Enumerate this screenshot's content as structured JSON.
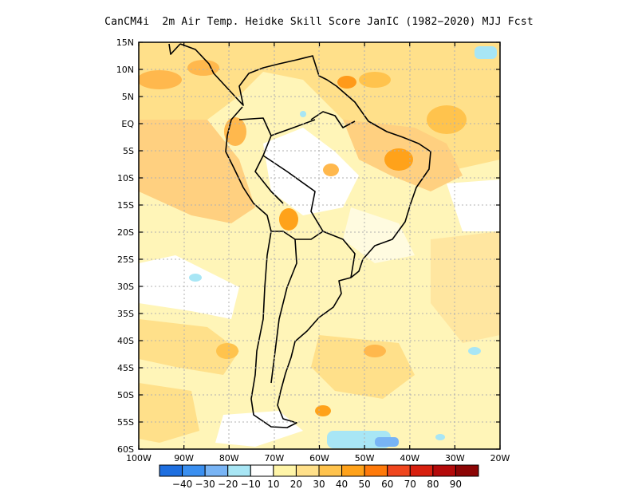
{
  "title": "CanCM4i  2m Air Temp. Heidke Skill Score JanIC (1982−2020) MJJ Fcst",
  "map": {
    "lat_labels": [
      "15N",
      "10N",
      "5N",
      "EQ",
      "5S",
      "10S",
      "15S",
      "20S",
      "25S",
      "30S",
      "35S",
      "40S",
      "45S",
      "50S",
      "55S",
      "60S"
    ],
    "lon_labels": [
      "100W",
      "90W",
      "80W",
      "70W",
      "60W",
      "50W",
      "40W",
      "30W",
      "20W"
    ],
    "lat_range": [
      -60,
      15
    ],
    "lon_range": [
      -100,
      -20
    ],
    "grid": true,
    "background_color": "#ffffff",
    "land_outline_color": "#000000"
  },
  "colorbar": {
    "labels": [
      "−40",
      "−30",
      "−20",
      "−10",
      "10",
      "20",
      "30",
      "40",
      "50",
      "60",
      "70",
      "80",
      "90"
    ],
    "colors": [
      "#1e6fe0",
      "#3a8ff0",
      "#78b4f5",
      "#a8e6f5",
      "#ffffff",
      "#fff5a8",
      "#ffe08a",
      "#ffc34d",
      "#ffa21a",
      "#ff7a0a",
      "#f0461e",
      "#d8200f",
      "#b40a0a",
      "#8c0505"
    ]
  }
}
